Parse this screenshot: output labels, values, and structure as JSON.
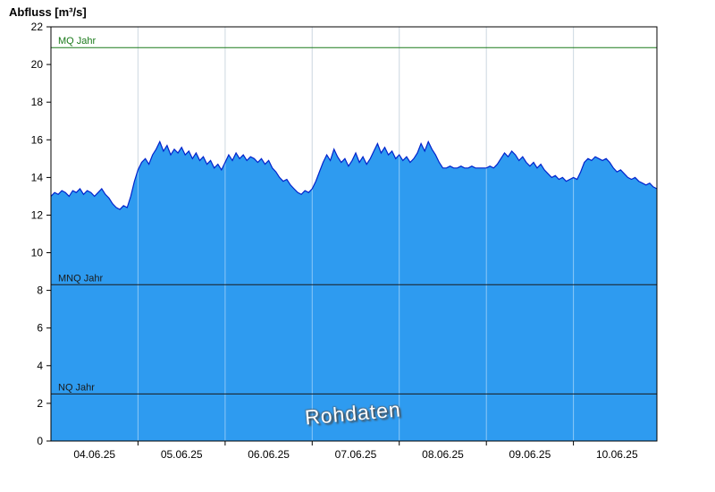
{
  "watermark": "Rohdaten",
  "chart_data": {
    "type": "area",
    "title": "",
    "xlabel": "",
    "ylabel": "Abfluss [m³/s]",
    "ylim": [
      0,
      22
    ],
    "y_ticks": [
      0,
      2,
      4,
      6,
      8,
      10,
      12,
      14,
      16,
      18,
      20,
      22
    ],
    "x_day_labels": [
      "04.06.25",
      "05.06.25",
      "06.06.25",
      "07.06.25",
      "08.06.25",
      "09.06.25",
      "10.06.25"
    ],
    "x_range_hours": 167,
    "grid": "vertical-day-lines",
    "legend_position": "none",
    "colors": {
      "fill": "#2E9BF0",
      "line": "#0022CC",
      "grid": "#AFC2CF",
      "grid_highlight": "#FFFFFF",
      "axis": "#000000"
    },
    "reference_lines": [
      {
        "label": "MQ Jahr",
        "value": 20.9,
        "color": "#1A7A1A"
      },
      {
        "label": "MNQ Jahr",
        "value": 8.3,
        "color": "#1A1A1A"
      },
      {
        "label": "NQ Jahr",
        "value": 2.5,
        "color": "#1A1A1A"
      }
    ],
    "series": [
      {
        "name": "Rohdaten",
        "unit": "m³/s",
        "sampling": "hourly",
        "values": [
          13.0,
          13.2,
          13.1,
          13.3,
          13.2,
          13.0,
          13.3,
          13.2,
          13.4,
          13.1,
          13.3,
          13.2,
          13.0,
          13.2,
          13.4,
          13.1,
          12.9,
          12.6,
          12.4,
          12.3,
          12.5,
          12.4,
          13.0,
          13.8,
          14.4,
          14.8,
          15.0,
          14.7,
          15.2,
          15.5,
          15.9,
          15.4,
          15.7,
          15.2,
          15.5,
          15.3,
          15.6,
          15.2,
          15.4,
          15.0,
          15.3,
          14.9,
          15.1,
          14.7,
          14.9,
          14.5,
          14.7,
          14.4,
          14.8,
          15.2,
          14.9,
          15.3,
          15.0,
          15.2,
          14.9,
          15.1,
          15.0,
          14.8,
          15.0,
          14.7,
          14.9,
          14.5,
          14.3,
          14.0,
          13.8,
          13.9,
          13.6,
          13.4,
          13.2,
          13.1,
          13.3,
          13.2,
          13.4,
          13.8,
          14.3,
          14.8,
          15.2,
          14.9,
          15.5,
          15.1,
          14.8,
          15.0,
          14.6,
          14.9,
          15.3,
          14.8,
          15.1,
          14.7,
          15.0,
          15.4,
          15.8,
          15.3,
          15.6,
          15.2,
          15.4,
          15.0,
          15.2,
          14.9,
          15.1,
          14.8,
          15.0,
          15.3,
          15.8,
          15.4,
          15.9,
          15.5,
          15.2,
          14.8,
          14.5,
          14.5,
          14.6,
          14.5,
          14.5,
          14.6,
          14.5,
          14.5,
          14.6,
          14.5,
          14.5,
          14.5,
          14.5,
          14.6,
          14.5,
          14.7,
          15.0,
          15.3,
          15.1,
          15.4,
          15.2,
          14.9,
          15.1,
          14.8,
          14.6,
          14.8,
          14.5,
          14.7,
          14.4,
          14.2,
          14.0,
          14.1,
          13.9,
          14.0,
          13.8,
          13.9,
          14.0,
          13.9,
          14.3,
          14.8,
          15.0,
          14.9,
          15.1,
          15.0,
          14.9,
          15.0,
          14.8,
          14.5,
          14.3,
          14.4,
          14.2,
          14.0,
          13.9,
          14.0,
          13.8,
          13.7,
          13.6,
          13.7,
          13.5,
          13.4
        ]
      }
    ]
  }
}
